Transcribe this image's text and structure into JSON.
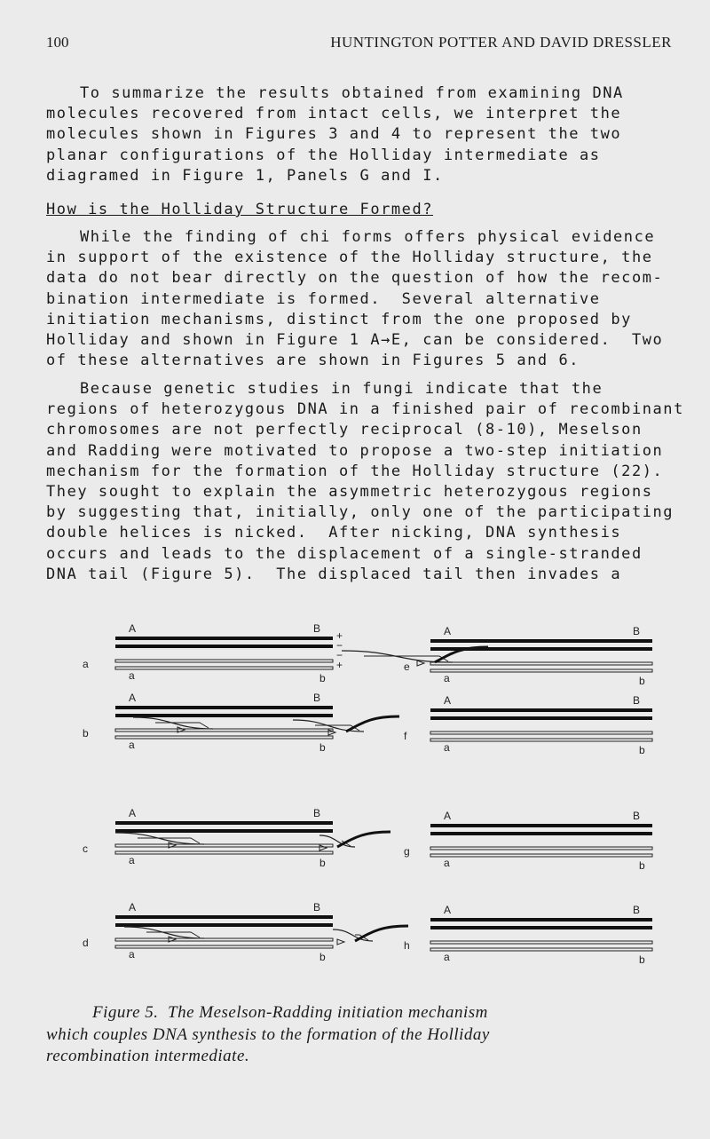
{
  "header": {
    "page_number": "100",
    "running_head": "HUNTINGTON POTTER AND DAVID DRESSLER"
  },
  "paragraphs": [
    [
      "To summarize the results obtained from examining DNA",
      "molecules recovered from intact cells, we interpret the",
      "molecules shown in Figures 3 and 4 to represent the two",
      "planar configurations of the Holliday intermediate as",
      "diagramed in Figure 1, Panels G and I."
    ],
    [
      "While the finding of chi forms offers physical evidence",
      "in support of the existence of the Holliday structure, the",
      "data do not bear directly on the question of how the recom-",
      "bination intermediate is formed.  Several alternative",
      "initiation mechanisms, distinct from the one proposed by",
      "Holliday and shown in Figure 1 A→E, can be considered.  Two",
      "of these alternatives are shown in Figures 5 and 6."
    ],
    [
      "Because genetic studies in fungi indicate that the",
      "regions of heterozygous DNA in a finished pair of recombinant",
      "chromosomes are not perfectly reciprocal (8-10), Meselson",
      "and Radding were motivated to propose a two-step initiation",
      "mechanism for the formation of the Holliday structure (22).",
      "They sought to explain the asymmetric heterozygous regions",
      "by suggesting that, initially, only one of the participating",
      "double helices is nicked.  After nicking, DNA synthesis",
      "occurs and leads to the displacement of a single-stranded",
      "DNA tail (Figure 5).  The displaced tail then invades a"
    ]
  ],
  "heading": "How is the Holliday Structure Formed?",
  "figure": {
    "panels": [
      {
        "label": "a",
        "upper": [
          "A",
          "B"
        ],
        "lower": [
          "a",
          "b"
        ],
        "signs": [
          "+",
          "−",
          "−",
          "+"
        ]
      },
      {
        "label": "b",
        "upper": [
          "A",
          "B"
        ],
        "lower": [
          "a",
          "b"
        ]
      },
      {
        "label": "c",
        "upper": [
          "A",
          "B"
        ],
        "lower": [
          "a",
          "b"
        ]
      },
      {
        "label": "d",
        "upper": [
          "A",
          "B"
        ],
        "lower": [
          "a",
          "b"
        ]
      },
      {
        "label": "e",
        "upper": [
          "A",
          "B"
        ],
        "lower": [
          "a",
          "b"
        ]
      },
      {
        "label": "f",
        "upper": [
          "A",
          "B"
        ],
        "lower": [
          "a",
          "b"
        ]
      },
      {
        "label": "g",
        "upper": [
          "A",
          "B"
        ],
        "lower": [
          "a",
          "b"
        ]
      },
      {
        "label": "h",
        "upper": [
          "A",
          "B"
        ],
        "lower": [
          "a",
          "b"
        ]
      }
    ],
    "caption": [
      "Figure 5.  The Meselson-Radding initiation mechanism",
      "which couples DNA synthesis to the formation of the Holliday",
      "recombination intermediate."
    ]
  }
}
